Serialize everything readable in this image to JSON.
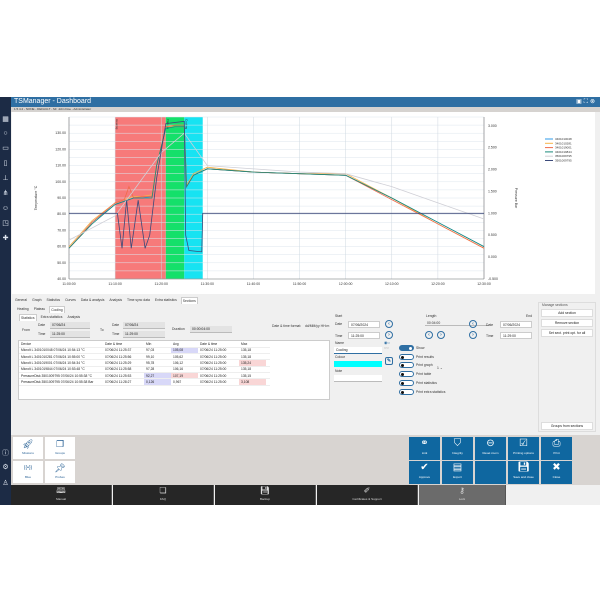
{
  "window": {
    "title": "TSManager - Dashboard",
    "subtitle": "1.5.4.2 - NONE - DEFAULT - Mr. John Doe - Administrator",
    "icons": [
      "minimize-icon",
      "fullscreen-icon",
      "close-icon"
    ]
  },
  "sidebar": {
    "icons": [
      "dashboard-icon",
      "circle-icon",
      "monitor-icon",
      "folder-icon",
      "probe-icon",
      "share-icon",
      "users-icon",
      "export-icon",
      "puzzle-icon",
      "info-icon",
      "settings-icon",
      "user-icon"
    ]
  },
  "chart_data": {
    "type": "line",
    "xlabel": "",
    "ylabel": "Temperature °C",
    "y2label": "Pressure Bar",
    "xticks": [
      "11:00:00",
      "11:10:00",
      "11:20:00",
      "11:30:00",
      "11:40:00",
      "11:50:00",
      "12:00:00",
      "12:10:00",
      "12:20:00",
      "12:30:00"
    ],
    "yticks": [
      "40.00",
      "50.00",
      "60.00",
      "70.00",
      "80.00",
      "90.00",
      "100.00",
      "110.00",
      "120.00",
      "130.00"
    ],
    "y2ticks": [
      "-0.500",
      "0.000",
      "0.500",
      "1.000",
      "1.500",
      "2.000",
      "2.500",
      "3.000"
    ],
    "ylim": [
      40,
      140
    ],
    "y2lim": [
      -0.5,
      3.2
    ],
    "xlim_minutes_after_11_00": [
      0,
      90
    ],
    "grid": true,
    "legend": "top-right",
    "sections": [
      {
        "name": "Heating",
        "start": "11:10:00",
        "end": "11:21:00",
        "color": "#f77a7a"
      },
      {
        "name": "Plateau",
        "start": "11:21:00",
        "end": "11:25:00",
        "color": "#14e06a"
      },
      {
        "name": "Cooling",
        "start": "11:25:00",
        "end": "11:29:00",
        "color": "#17e3f2"
      }
    ],
    "series": [
      {
        "name": "3401010048",
        "color": "#2f9be8",
        "axis": "left",
        "x": [
          0,
          5,
          10,
          12,
          14,
          16,
          18,
          19,
          21,
          23,
          25,
          25.5,
          27,
          30,
          40,
          50,
          60,
          70,
          80,
          90
        ],
        "y": [
          59,
          75,
          86,
          88,
          90,
          90,
          91,
          110,
          133,
          134,
          134,
          97,
          104,
          108,
          106,
          105,
          104,
          90,
          75,
          60
        ]
      },
      {
        "name": "3401010281",
        "color": "#f7b24a",
        "axis": "left",
        "x": [
          0,
          5,
          10,
          12,
          14,
          16,
          18,
          19,
          21,
          23,
          25,
          25.5,
          27,
          30,
          40,
          50,
          60,
          70,
          80,
          90
        ],
        "y": [
          60,
          76,
          87,
          89,
          91,
          91,
          92,
          110,
          134,
          134,
          134,
          98,
          105,
          109,
          106,
          105,
          105,
          90,
          74,
          59
        ]
      },
      {
        "name": "3401019001",
        "color": "#ef6b4a",
        "axis": "left",
        "x": [
          0,
          5,
          10,
          12,
          13,
          14,
          16,
          18,
          19,
          21,
          23,
          25,
          25.5,
          27,
          30,
          40,
          50,
          60,
          70,
          80,
          90
        ],
        "y": [
          59,
          75,
          87,
          89,
          97,
          90,
          91,
          91,
          110,
          134,
          135,
          135,
          97,
          104,
          108,
          106,
          105,
          104,
          89,
          74,
          59
        ]
      },
      {
        "name": "3401019844",
        "color": "#1a8a7a",
        "axis": "left",
        "x": [
          0,
          5,
          10,
          12,
          14,
          16,
          18,
          19,
          21,
          23,
          25,
          25.5,
          27,
          30,
          40,
          50,
          60,
          70,
          80,
          90
        ],
        "y": [
          59,
          74,
          86,
          88,
          90,
          90,
          90,
          110,
          133,
          134,
          134,
          97,
          104,
          108,
          106,
          105,
          104,
          90,
          75,
          60
        ]
      },
      {
        "name": "3501009795",
        "color": "#cfcfd6",
        "axis": "left",
        "x": [
          0,
          10,
          20,
          25,
          30,
          40,
          50,
          60,
          70,
          80,
          90
        ],
        "y": [
          64,
          79,
          118,
          130,
          110,
          108,
          106,
          105,
          97,
          87,
          77
        ]
      },
      {
        "name": "3501009795",
        "color": "#3c4a7a",
        "axis": "right",
        "x": [
          0,
          10,
          10.5,
          11.5,
          12.5,
          13.5,
          15,
          16.5,
          17.5,
          19,
          21,
          25,
          25.3,
          26,
          28.8,
          29,
          40,
          50,
          60,
          70,
          80,
          90
        ],
        "y": [
          1.0,
          1.0,
          1.0,
          0.2,
          1.3,
          0.2,
          1.3,
          0.2,
          0.5,
          1.8,
          3.05,
          3.1,
          0.5,
          0.15,
          0.12,
          1.0,
          1.0,
          1.0,
          1.0,
          1.0,
          1.0,
          1.0
        ]
      }
    ]
  },
  "tabs": {
    "main": [
      "General",
      "Graph",
      "Statistics",
      "Curves",
      "Data & analysis",
      "Analysis",
      "Time sync data",
      "Extra statistics",
      "Sections"
    ],
    "sections": [
      "Heating",
      "Plateau",
      "Cooling"
    ],
    "stats": [
      "Statistics",
      "Extra statistics",
      "Analysis"
    ]
  },
  "range": {
    "from_label": "From",
    "to_label": "To",
    "date_label": "Date",
    "time_label": "Time",
    "from_date": "07/06/24",
    "from_time": "11:25:00",
    "to_date": "07/06/24",
    "to_time": "11:29:00",
    "duration_label": "Duration",
    "duration": "00:00:04:00",
    "format_label": "Date & time format:",
    "format": "dd/MM/yy HH:m"
  },
  "table": {
    "headers": [
      "Device",
      "Date & time",
      "Min",
      "Avg",
      "Date & time",
      "Max"
    ],
    "rows": [
      [
        "Microlt L 3401010048 07/06/24 10:54:13 °C",
        "07/06/24 11:25:37",
        "97,03",
        "105,08",
        "07/06/24 11:25:00",
        "135,18"
      ],
      [
        "Microlt L 3401010281 07/06/24 10:55:00 °C",
        "07/06/24 11:25:56",
        "99,10",
        "105,62",
        "07/06/24 11:25:00",
        "135,18"
      ],
      [
        "Microlt L 3401019001 07/06/24 10:54:34 °C",
        "07/06/24 11:25:29",
        "95,78",
        "106,12",
        "07/06/24 11:25:00",
        "135,24"
      ],
      [
        "Microlt L 3401019844 07/06/24 10:53:48 °C",
        "07/06/24 11:25:58",
        "97,28",
        "106,16",
        "07/06/24 11:25:00",
        "135,18"
      ],
      [
        "PressureDisk 3501009795 07/06/24 10:55:38 °C",
        "07/06/24 11:25:53",
        "92,27",
        "107,19",
        "07/06/24 11:25:00",
        "135,15"
      ],
      [
        "PressureDisk 3501009795 07/06/24 10:55:38 Bar",
        "07/06/24 11:28:27",
        "0,126",
        "0,967",
        "07/06/24 11:25:00",
        "3,108"
      ]
    ]
  },
  "section": {
    "start_label": "Start",
    "end_label": "End",
    "length_label": "Length",
    "date_label": "Date",
    "time_label": "Time",
    "start_date": "07/06/2024",
    "start_time": "11:25:00",
    "end_date": "07/06/2024",
    "end_time": "11:29:00",
    "length": "00:04:00",
    "name_label": "Name",
    "name": "Cooling",
    "colour_label": "Colour",
    "colour": "#00ffff",
    "note_label": "Note",
    "note": "",
    "toggles": [
      {
        "label": "Show",
        "on": true
      },
      {
        "label": "Print results",
        "on": false
      },
      {
        "label": "Print graph",
        "on": false
      },
      {
        "label": "Print table",
        "on": false
      },
      {
        "label": "Print statistics",
        "on": false
      },
      {
        "label": "Print extra statistics",
        "on": false
      }
    ],
    "print_table_value": "1"
  },
  "manage": {
    "title": "Manage sections",
    "add": "Add section",
    "remove": "Remove section",
    "set": "Set sect. print opt. for all",
    "groups": "Groups from sections"
  },
  "left_tiles": [
    {
      "label": "Missions",
      "icon": "rocket-icon"
    },
    {
      "label": "Groups",
      "icon": "groups-icon"
    },
    {
      "label": "Blue",
      "icon": "wireless-icon"
    },
    {
      "label": "Probes",
      "icon": "pin-icon"
    }
  ],
  "right_tiles": [
    {
      "label": "Link",
      "icon": "link-icon"
    },
    {
      "label": "Integrity",
      "icon": "shield-icon"
    },
    {
      "label": "Reset zoom",
      "icon": "zoom-out-icon"
    },
    {
      "label": "Printing options",
      "icon": "checkbox-icon"
    },
    {
      "label": "Print",
      "icon": "printer-icon"
    },
    {
      "label": "Approve",
      "icon": "check-icon"
    },
    {
      "label": "Export",
      "icon": "export-icon"
    },
    {
      "label": "",
      "icon": ""
    },
    {
      "label": "Save and close",
      "icon": "save-icon"
    },
    {
      "label": "Close",
      "icon": "close-icon"
    }
  ],
  "footer": [
    {
      "label": "Manual",
      "icon": "book-icon"
    },
    {
      "label": "FAQ",
      "icon": "document-icon"
    },
    {
      "label": "Backup",
      "icon": "save-icon"
    },
    {
      "label": "Certificates & Support",
      "icon": "certificate-icon"
    },
    {
      "label": "Lock",
      "icon": "key-icon"
    }
  ]
}
